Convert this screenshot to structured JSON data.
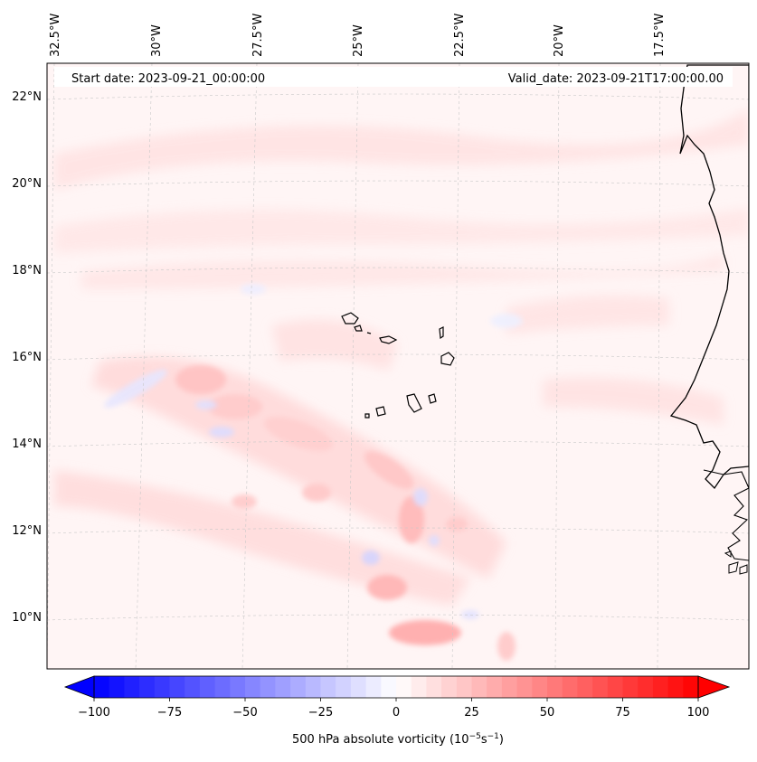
{
  "map": {
    "start_label": "Start date: 2023-09-21_00:00:00",
    "valid_label": "Valid_date: 2023-09-21T17:00:00.00",
    "lon_labels": [
      "32.5°W",
      "30°W",
      "27.5°W",
      "25°W",
      "22.5°W",
      "20°W",
      "17.5°W"
    ],
    "lat_labels": [
      "22°N",
      "20°N",
      "18°N",
      "16°N",
      "14°N",
      "12°N",
      "10°N"
    ]
  },
  "colorbar": {
    "min": -100,
    "max": 100,
    "ticks": [
      "−100",
      "−75",
      "−50",
      "−25",
      "0",
      "25",
      "50",
      "75",
      "100"
    ],
    "label": "500 hPa absolute vorticity (10",
    "label_exp1": "−5",
    "label_mid": "s",
    "label_exp2": "−1",
    "label_end": ")",
    "neg_color": "#0000ff",
    "pos_color": "#ff0000"
  }
}
